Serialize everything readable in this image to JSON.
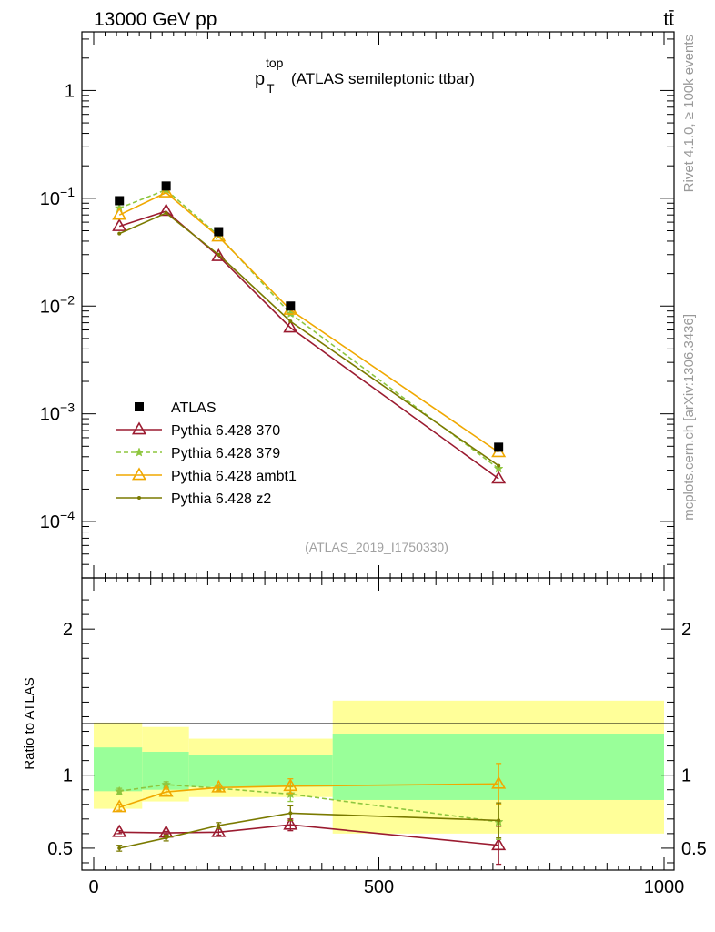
{
  "header": {
    "left_label": "13000 GeV pp",
    "right_label": "tt̄"
  },
  "side_labels": {
    "rivet": "Rivet 4.1.0, ≥ 100k events",
    "mcplots": "mcplots.cern.ch [arXiv:1306.3436]"
  },
  "chart_data": [
    {
      "type": "line",
      "panel": "main",
      "title_main": "p",
      "title_sub": "T",
      "title_sup": "top",
      "title_rest": "(ATLAS semileptonic ttbar)",
      "watermark": "(ATLAS_2019_I1750330)",
      "y_scale": "log",
      "ylim": [
        3e-05,
        3.5
      ],
      "y_tick_labels": [
        {
          "value": 1,
          "base": "1",
          "exp": ""
        },
        {
          "value": 0.1,
          "base": "10",
          "exp": "−1"
        },
        {
          "value": 0.01,
          "base": "10",
          "exp": "−2"
        },
        {
          "value": 0.001,
          "base": "10",
          "exp": "−3"
        },
        {
          "value": 0.0001,
          "base": "10",
          "exp": "−4"
        }
      ],
      "xlim": [
        -20,
        1000
      ],
      "legend_position": "lower-left",
      "data_series": {
        "name": "ATLAS",
        "x": [
          45,
          127,
          219,
          345,
          710
        ],
        "y": [
          0.095,
          0.13,
          0.049,
          0.01,
          0.00049
        ]
      },
      "series": [
        {
          "name": "Pythia 6.428 370",
          "color": "#9b1b30",
          "style": "solid",
          "marker": "triangle-open",
          "x": [
            45,
            127,
            219,
            345,
            710
          ],
          "y": [
            0.055,
            0.076,
            0.029,
            0.0063,
            0.00025
          ]
        },
        {
          "name": "Pythia 6.428 379",
          "color": "#8ec63f",
          "style": "dashed",
          "marker": "star",
          "x": [
            45,
            127,
            219,
            345,
            710
          ],
          "y": [
            0.081,
            0.12,
            0.045,
            0.0085,
            0.00031
          ]
        },
        {
          "name": "Pythia 6.428 ambt1",
          "color": "#f0a800",
          "style": "solid",
          "marker": "triangle-open",
          "x": [
            45,
            127,
            219,
            345,
            710
          ],
          "y": [
            0.07,
            0.113,
            0.044,
            0.0092,
            0.00044
          ]
        },
        {
          "name": "Pythia 6.428 z2",
          "color": "#7a7a00",
          "style": "solid",
          "marker": "dot",
          "x": [
            45,
            127,
            219,
            345,
            710
          ],
          "y": [
            0.047,
            0.073,
            0.03,
            0.0072,
            0.00033
          ]
        }
      ]
    },
    {
      "type": "line",
      "panel": "ratio",
      "ylabel": "Ratio to ATLAS",
      "ylim": [
        0.35,
        2.35
      ],
      "xlim": [
        -20,
        1000
      ],
      "y_tick_labels": [
        {
          "value": 0.5,
          "label": "0.5"
        },
        {
          "value": 1,
          "label": "1"
        },
        {
          "value": 2,
          "label": "2"
        }
      ],
      "x_tick_labels": [
        {
          "value": 0,
          "label": "0"
        },
        {
          "value": 500,
          "label": "500"
        },
        {
          "value": 1000,
          "label": "1000"
        }
      ],
      "bins": [
        {
          "lo": 0,
          "hi": 85,
          "green": [
            0.89,
            1.19
          ],
          "yellow": [
            0.77,
            1.36
          ]
        },
        {
          "lo": 85,
          "hi": 167,
          "green": [
            0.9,
            1.16
          ],
          "yellow": [
            0.82,
            1.33
          ]
        },
        {
          "lo": 167,
          "hi": 419,
          "green": [
            0.92,
            1.14
          ],
          "yellow": [
            0.85,
            1.25
          ]
        },
        {
          "lo": 419,
          "hi": 1000,
          "green": [
            0.83,
            1.28
          ],
          "yellow": [
            0.6,
            1.51
          ]
        }
      ],
      "series": [
        {
          "name": "Pythia 6.428 370",
          "color": "#9b1b30",
          "style": "solid",
          "marker": "triangle-open",
          "x": [
            45,
            127,
            219,
            345,
            710
          ],
          "y": [
            0.61,
            0.605,
            0.61,
            0.66,
            0.52
          ],
          "err": [
            0.01,
            0.01,
            0.02,
            0.04,
            0.13
          ]
        },
        {
          "name": "Pythia 6.428 379",
          "color": "#8ec63f",
          "style": "dashed",
          "marker": "star",
          "x": [
            45,
            127,
            219,
            345,
            710
          ],
          "y": [
            0.89,
            0.935,
            0.91,
            0.87,
            0.68
          ],
          "err": [
            0.02,
            0.02,
            0.02,
            0.05,
            0.12
          ]
        },
        {
          "name": "Pythia 6.428 ambt1",
          "color": "#f0a800",
          "style": "solid",
          "marker": "triangle-open",
          "x": [
            45,
            127,
            219,
            345,
            710
          ],
          "y": [
            0.78,
            0.885,
            0.915,
            0.925,
            0.94
          ],
          "err": [
            0.02,
            0.02,
            0.02,
            0.05,
            0.14
          ]
        },
        {
          "name": "Pythia 6.428 z2",
          "color": "#7a7a00",
          "style": "solid",
          "marker": "dot",
          "x": [
            45,
            127,
            219,
            345,
            710
          ],
          "y": [
            0.5,
            0.57,
            0.655,
            0.74,
            0.69
          ],
          "err": [
            0.02,
            0.02,
            0.02,
            0.05,
            0.12
          ]
        }
      ]
    }
  ]
}
